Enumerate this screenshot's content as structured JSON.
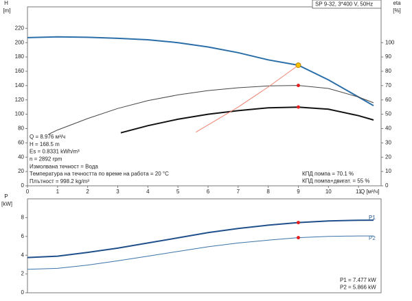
{
  "chart_data": [
    {
      "type": "line",
      "title": "SP 9-32, 3*400 V, 50Hz",
      "y_label": [
        "H",
        "[m]"
      ],
      "y2_label": [
        "eta",
        "[%]"
      ],
      "x_label": "Q [м³/ч]",
      "xlim": [
        0,
        11.75
      ],
      "xticks": [
        0,
        1,
        2,
        3,
        4,
        5,
        6,
        7,
        8,
        9,
        10,
        11
      ],
      "ylim": [
        0,
        250
      ],
      "yticks": [
        0,
        20,
        40,
        60,
        80,
        100,
        120,
        140,
        160,
        180,
        200,
        220
      ],
      "y2lim": [
        0,
        125
      ],
      "y2ticks": [
        0,
        10,
        20,
        30,
        40,
        50,
        60,
        70,
        80,
        90,
        100
      ],
      "series": [
        {
          "color": "#2a6ea8",
          "width": 2,
          "x": [
            0,
            1,
            2,
            3,
            4,
            5,
            6,
            7,
            8,
            9,
            10,
            11,
            11.5
          ],
          "values": [
            207,
            208,
            207.5,
            206,
            204,
            200,
            194,
            186,
            176,
            168.5,
            148,
            124,
            112
          ]
        },
        {
          "color": "#444444",
          "width": 1,
          "axis": "y2",
          "x": [
            0.7,
            1,
            2,
            3,
            4,
            5,
            6,
            7,
            8,
            9,
            10,
            11,
            11.5
          ],
          "values": [
            36,
            39,
            47,
            54,
            59.5,
            63.5,
            66.5,
            68.5,
            69.8,
            70.1,
            68,
            62,
            58
          ]
        },
        {
          "color": "#111111",
          "width": 2,
          "axis": "y2",
          "x": [
            3.1,
            4,
            5,
            6,
            7,
            8,
            9,
            10,
            11,
            11.5
          ],
          "values": [
            37,
            42,
            46.5,
            50,
            52.5,
            54.5,
            55,
            53.5,
            49,
            46
          ]
        },
        {
          "color": "#f08070",
          "width": 1,
          "x": [
            5.6,
            7,
            8,
            9
          ],
          "values": [
            75,
            110,
            138,
            168.5
          ]
        }
      ],
      "markers": [
        {
          "x": 9,
          "y": 168.5,
          "color": "#f5c400"
        },
        {
          "x": 9,
          "y": 70.1,
          "color": "#e02020",
          "axis": "y2"
        },
        {
          "x": 9,
          "y": 55,
          "color": "#e02020",
          "axis": "y2"
        }
      ],
      "info": [
        "Q = 8.976 м³/ч",
        "H = 168.5 m",
        "Es = 0.8331 kWh/m³",
        "n = 2892 rpm",
        "Измолвана течност = Вода",
        "Температура на течността по време на работа = 20 °C",
        "Плътност = 998.2 kg/m³"
      ],
      "notes": [
        "КПД помпа = 70.1 %",
        "КПД помпа+двигат. = 55 %"
      ]
    },
    {
      "type": "line",
      "y_label": [
        "P",
        "[kW]"
      ],
      "xlim": [
        0,
        11.75
      ],
      "ylim": [
        0,
        10
      ],
      "yticks": [
        0,
        2,
        4,
        6,
        8
      ],
      "series": [
        {
          "name": "P1",
          "color": "#1f4f8a",
          "width": 2,
          "x": [
            0,
            1,
            2,
            3,
            4,
            5,
            6,
            7,
            8,
            9,
            10,
            11,
            11.5
          ],
          "values": [
            3.75,
            3.9,
            4.3,
            4.75,
            5.3,
            5.85,
            6.4,
            6.85,
            7.2,
            7.477,
            7.65,
            7.72,
            7.73
          ]
        },
        {
          "name": "P2",
          "color": "#3a72a8",
          "width": 1,
          "x": [
            0,
            1,
            2,
            3,
            4,
            5,
            6,
            7,
            8,
            9,
            10,
            11,
            11.5
          ],
          "values": [
            2.5,
            2.6,
            2.95,
            3.4,
            3.9,
            4.4,
            4.9,
            5.3,
            5.6,
            5.866,
            6.0,
            6.05,
            6.05
          ]
        }
      ],
      "markers": [
        {
          "x": 9,
          "y": 7.477,
          "color": "#e02020"
        },
        {
          "x": 9,
          "y": 5.866,
          "color": "#e02020"
        }
      ],
      "notes": [
        "P1 = 7.477 kW",
        "P2 = 5.866 kW"
      ]
    }
  ]
}
